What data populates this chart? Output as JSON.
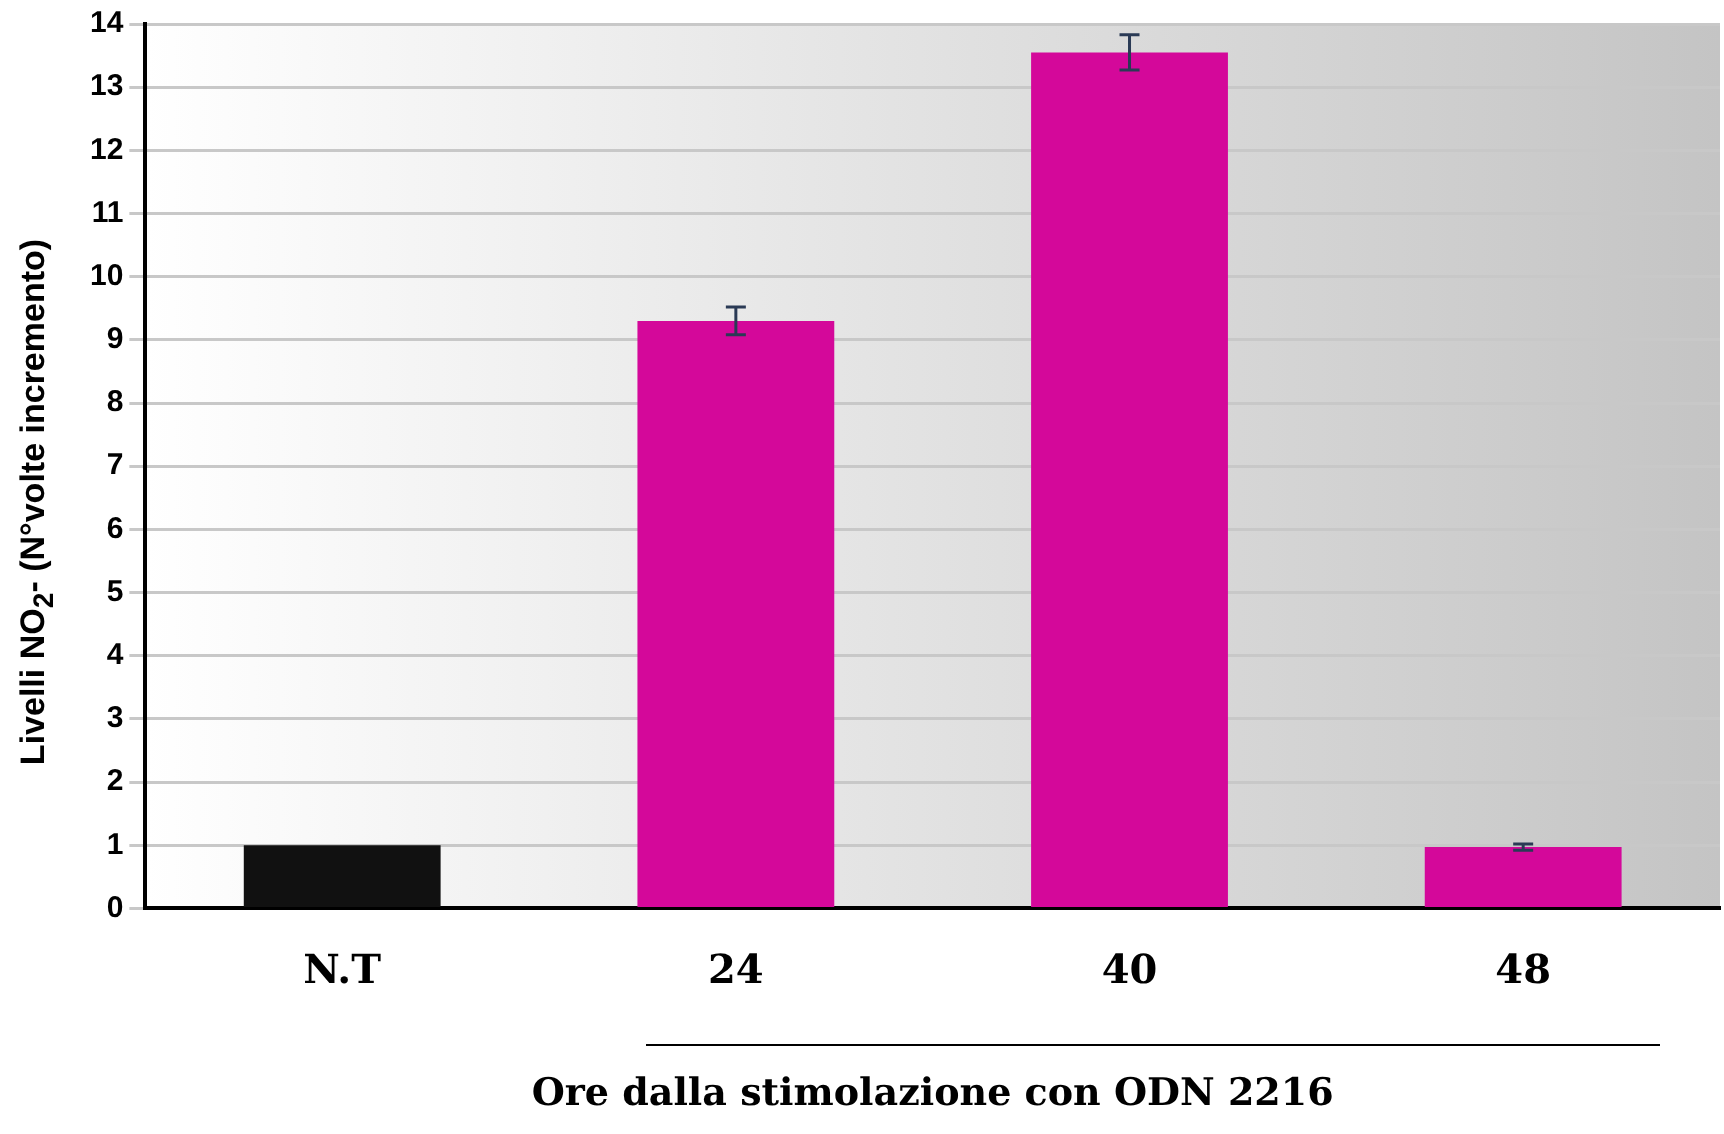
{
  "chart_data": {
    "type": "bar",
    "xlabel": "Ore dalla stimolazione con ODN 2216",
    "ylabel": "Livelli NO$_{2}$- (N°volte incremento)",
    "categories": [
      "N.T",
      "24",
      "40",
      "48"
    ],
    "values": [
      1,
      9.3,
      13.55,
      0.97
    ],
    "colors": [
      "#111111",
      "#d4089a",
      "#d4089a",
      "#d4089a"
    ],
    "errors": [
      null,
      0.22,
      0.28,
      0.05
    ],
    "ylim": [
      0,
      14
    ],
    "yticks": [
      0,
      1,
      2,
      3,
      4,
      5,
      6,
      7,
      8,
      9,
      10,
      11,
      12,
      13,
      14
    ],
    "grid": "y",
    "legend": false
  }
}
